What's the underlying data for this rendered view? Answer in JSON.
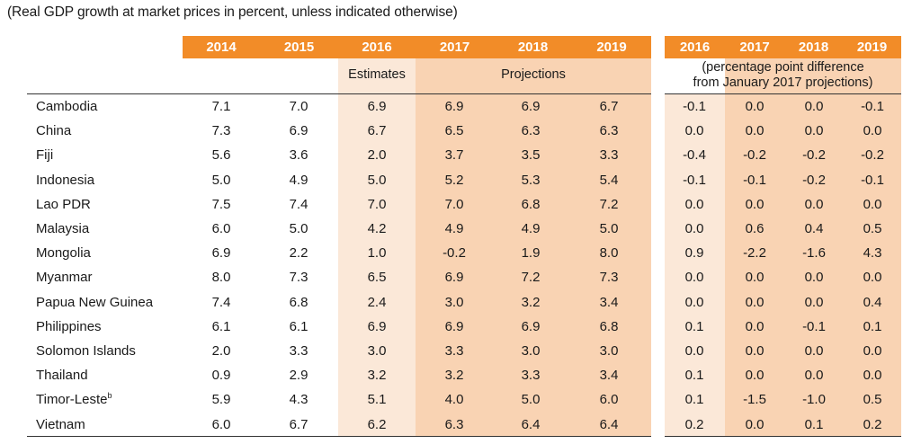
{
  "caption": "(Real GDP growth at market prices in percent, unless indicated otherwise)",
  "header": {
    "years": [
      "2014",
      "2015",
      "2016",
      "2017",
      "2018",
      "2019"
    ],
    "diff_years": [
      "2016",
      "2017",
      "2018",
      "2019"
    ],
    "estimates_label": "Estimates",
    "projections_label": "Projections",
    "diff_note_line1": "(percentage point difference",
    "diff_note_line2": "from January 2017 projections)"
  },
  "colors": {
    "header_orange": "#f28c28",
    "estimates_tint": "#fbe8d8",
    "projections_tint": "#f9d3b3"
  },
  "rows": [
    {
      "name": "Cambodia",
      "values": [
        "7.1",
        "7.0",
        "6.9",
        "6.9",
        "6.9",
        "6.7"
      ],
      "diff": [
        "-0.1",
        "0.0",
        "0.0",
        "-0.1"
      ]
    },
    {
      "name": "China",
      "values": [
        "7.3",
        "6.9",
        "6.7",
        "6.5",
        "6.3",
        "6.3"
      ],
      "diff": [
        "0.0",
        "0.0",
        "0.0",
        "0.0"
      ]
    },
    {
      "name": "Fiji",
      "values": [
        "5.6",
        "3.6",
        "2.0",
        "3.7",
        "3.5",
        "3.3"
      ],
      "diff": [
        "-0.4",
        "-0.2",
        "-0.2",
        "-0.2"
      ]
    },
    {
      "name": "Indonesia",
      "values": [
        "5.0",
        "4.9",
        "5.0",
        "5.2",
        "5.3",
        "5.4"
      ],
      "diff": [
        "-0.1",
        "-0.1",
        "-0.2",
        "-0.1"
      ]
    },
    {
      "name": "Lao PDR",
      "values": [
        "7.5",
        "7.4",
        "7.0",
        "7.0",
        "6.8",
        "7.2"
      ],
      "diff": [
        "0.0",
        "0.0",
        "0.0",
        "0.0"
      ]
    },
    {
      "name": "Malaysia",
      "values": [
        "6.0",
        "5.0",
        "4.2",
        "4.9",
        "4.9",
        "5.0"
      ],
      "diff": [
        "0.0",
        "0.6",
        "0.4",
        "0.5"
      ]
    },
    {
      "name": "Mongolia",
      "values": [
        "6.9",
        "2.2",
        "1.0",
        "-0.2",
        "1.9",
        "8.0"
      ],
      "diff": [
        "0.9",
        "-2.2",
        "-1.6",
        "4.3"
      ]
    },
    {
      "name": "Myanmar",
      "values": [
        "8.0",
        "7.3",
        "6.5",
        "6.9",
        "7.2",
        "7.3"
      ],
      "diff": [
        "0.0",
        "0.0",
        "0.0",
        "0.0"
      ]
    },
    {
      "name": "Papua New Guinea",
      "values": [
        "7.4",
        "6.8",
        "2.4",
        "3.0",
        "3.2",
        "3.4"
      ],
      "diff": [
        "0.0",
        "0.0",
        "0.0",
        "0.4"
      ]
    },
    {
      "name": "Philippines",
      "values": [
        "6.1",
        "6.1",
        "6.9",
        "6.9",
        "6.9",
        "6.8"
      ],
      "diff": [
        "0.1",
        "0.0",
        "-0.1",
        "0.1"
      ]
    },
    {
      "name": "Solomon Islands",
      "values": [
        "2.0",
        "3.3",
        "3.0",
        "3.3",
        "3.0",
        "3.0"
      ],
      "diff": [
        "0.0",
        "0.0",
        "0.0",
        "0.0"
      ]
    },
    {
      "name": "Thailand",
      "values": [
        "0.9",
        "2.9",
        "3.2",
        "3.2",
        "3.3",
        "3.4"
      ],
      "diff": [
        "0.1",
        "0.0",
        "0.0",
        "0.0"
      ]
    },
    {
      "name": "Timor-Leste",
      "name_sup": "b",
      "values": [
        "5.9",
        "4.3",
        "5.1",
        "4.0",
        "5.0",
        "6.0"
      ],
      "diff": [
        "0.1",
        "-1.5",
        "-1.0",
        "0.5"
      ]
    },
    {
      "name": "Vietnam",
      "values": [
        "6.0",
        "6.7",
        "6.2",
        "6.3",
        "6.4",
        "6.4"
      ],
      "diff": [
        "0.2",
        "0.0",
        "0.1",
        "0.2"
      ]
    }
  ]
}
